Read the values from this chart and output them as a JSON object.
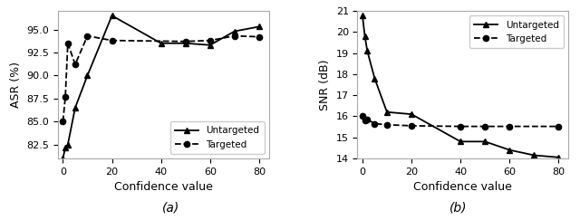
{
  "asr_x": [
    0,
    1,
    2,
    5,
    10,
    20,
    40,
    50,
    60,
    70,
    80
  ],
  "asr_untargeted": [
    81.0,
    82.2,
    82.5,
    86.5,
    90.0,
    96.5,
    93.5,
    93.5,
    93.3,
    94.8,
    95.3
  ],
  "asr_targeted_x": [
    0,
    1,
    2,
    5,
    10,
    20,
    50,
    60,
    70,
    80
  ],
  "asr_targeted": [
    85.0,
    87.7,
    93.5,
    91.2,
    94.3,
    93.8,
    93.7,
    93.8,
    94.3,
    94.2
  ],
  "snr_x": [
    0,
    1,
    2,
    5,
    10,
    20,
    40,
    50,
    60,
    70,
    80
  ],
  "snr_untargeted": [
    20.8,
    19.8,
    19.1,
    17.8,
    16.2,
    16.1,
    14.8,
    14.8,
    14.4,
    14.15,
    14.05
  ],
  "snr_targeted_x": [
    0,
    1,
    2,
    5,
    10,
    20,
    40,
    50,
    60,
    80
  ],
  "snr_targeted": [
    16.0,
    15.8,
    15.85,
    15.65,
    15.6,
    15.55,
    15.52,
    15.52,
    15.52,
    15.52
  ],
  "asr_ylabel": "ASR (%)",
  "snr_ylabel": "SNR (dB)",
  "xlabel": "Confidence value",
  "label_untargeted": "Untargeted",
  "label_targeted": "Targeted",
  "subfig_a": "(a)",
  "subfig_b": "(b)",
  "asr_ylim": [
    81.0,
    97.0
  ],
  "snr_ylim": [
    14.0,
    21.0
  ],
  "asr_yticks": [
    82.5,
    85.0,
    87.5,
    90.0,
    92.5,
    95.0
  ],
  "snr_yticks": [
    14,
    15,
    16,
    17,
    18,
    19,
    20,
    21
  ],
  "xticks": [
    0,
    20,
    40,
    60,
    80
  ],
  "bg_color": "#ffffff"
}
